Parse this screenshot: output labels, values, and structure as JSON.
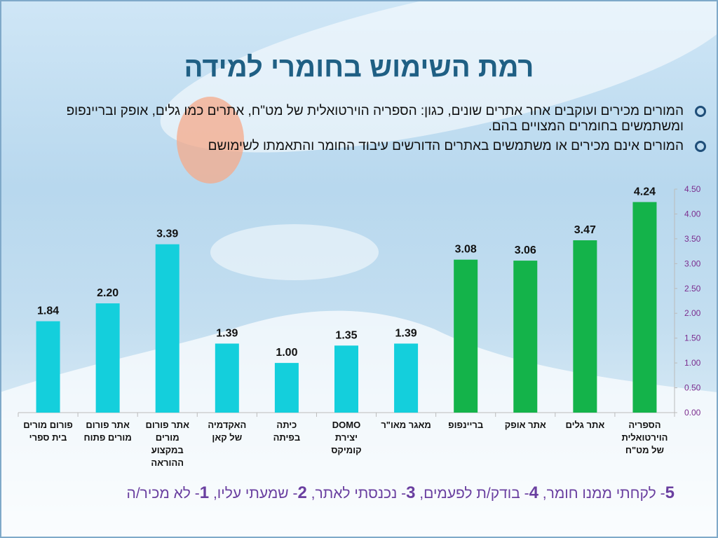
{
  "title": "רמת השימוש בחומרי למידה",
  "bullets": [
    "המורים מכירים ועוקבים אחר אתרים שונים, כגון: הספריה הוירטואלית של מט\"ח, אתרים כמו גלים, אופק ובריינפופ ומשתמשים בחומרים המצויים בהם.",
    "המורים אינם מכירים או משתמשים באתרים הדורשים עיבוד החומר והתאמתו לשימושם"
  ],
  "legend_scale": [
    {
      "num": "5",
      "text": "- לקחתי ממנו חומר, "
    },
    {
      "num": "4",
      "text": "- בודק/ת לפעמים, "
    },
    {
      "num": "3",
      "text": "- נכנסתי לאתר, "
    },
    {
      "num": "2",
      "text": "- שמעתי עליו, "
    },
    {
      "num": "1",
      "text": "- לא מכיר/ה"
    }
  ],
  "colors": {
    "cyan": "#14cfdc",
    "green": "#14b34a",
    "axis": "#7b2d8e",
    "title": "#1f5f84"
  },
  "chart_data": {
    "type": "bar",
    "title": "",
    "xlabel": "",
    "ylabel": "",
    "ylim": [
      0,
      4.5
    ],
    "yticks": [
      "0.00",
      "0.50",
      "1.00",
      "1.50",
      "2.00",
      "2.50",
      "3.00",
      "3.50",
      "4.00",
      "4.50"
    ],
    "grid": false,
    "y_axis_side": "right",
    "categories": [
      [
        "פורום מורים",
        "בית ספרי"
      ],
      [
        "אתר פורום",
        "מורים פתוח"
      ],
      [
        "אתר פורום",
        "מורים",
        "במקצוע",
        "ההוראה"
      ],
      [
        "האקדמיה",
        "של קאן"
      ],
      [
        "כיתה",
        "בפיתה"
      ],
      [
        "DOMO",
        "יצירת",
        "קומיקס"
      ],
      [
        "מאגר מאו\"ר"
      ],
      [
        "בריינפופ"
      ],
      [
        "אתר אופק"
      ],
      [
        "אתר גלים"
      ],
      [
        "הספריה",
        "הוירטואלית",
        "של מט\"ח"
      ]
    ],
    "values": [
      1.84,
      2.2,
      3.39,
      1.39,
      1.0,
      1.35,
      1.39,
      3.08,
      3.06,
      3.47,
      4.24
    ],
    "value_labels": [
      "1.84",
      "2.20",
      "3.39",
      "1.39",
      "1.00",
      "1.35",
      "1.39",
      "3.08",
      "3.06",
      "3.47",
      "4.24"
    ],
    "bar_colors": [
      "cyan",
      "cyan",
      "cyan",
      "cyan",
      "cyan",
      "cyan",
      "cyan",
      "green",
      "green",
      "green",
      "green"
    ]
  }
}
